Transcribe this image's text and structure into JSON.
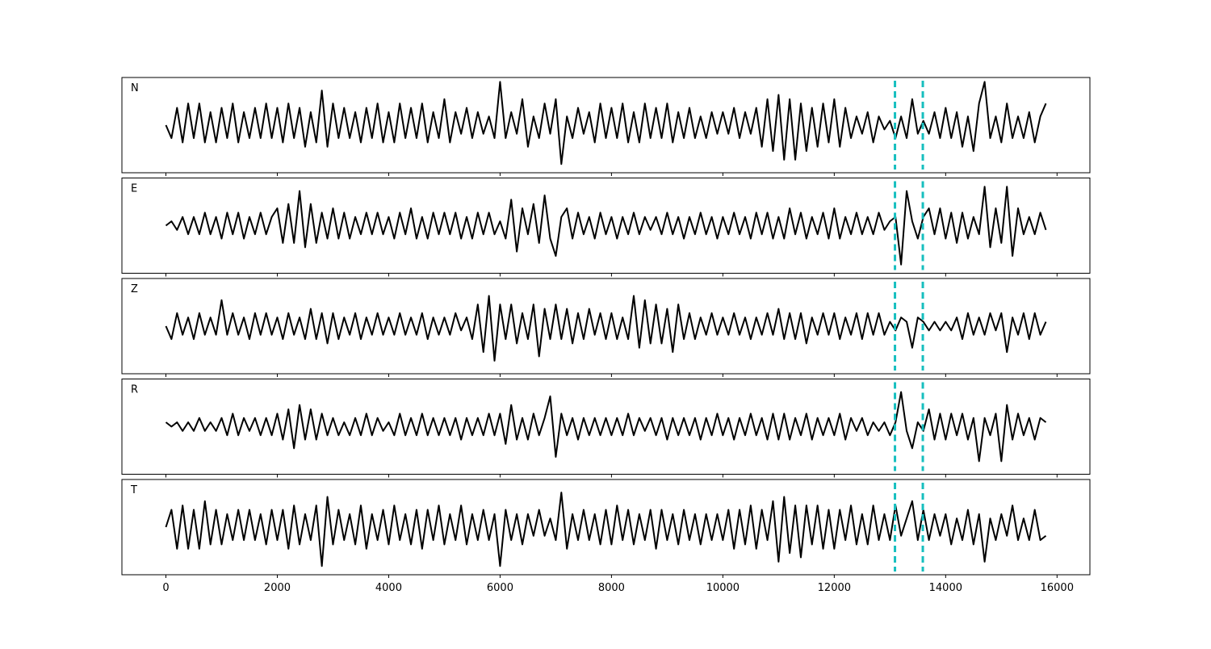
{
  "chart_data": {
    "type": "line",
    "x": [
      0,
      100,
      200,
      300,
      400,
      500,
      600,
      700,
      800,
      900,
      1000,
      1100,
      1200,
      1300,
      1400,
      1500,
      1600,
      1700,
      1800,
      1900,
      2000,
      2100,
      2200,
      2300,
      2400,
      2500,
      2600,
      2700,
      2800,
      2900,
      3000,
      3100,
      3200,
      3300,
      3400,
      3500,
      3600,
      3700,
      3800,
      3900,
      4000,
      4100,
      4200,
      4300,
      4400,
      4500,
      4600,
      4700,
      4800,
      4900,
      5000,
      5100,
      5200,
      5300,
      5400,
      5500,
      5600,
      5700,
      5800,
      5900,
      6000,
      6100,
      6200,
      6300,
      6400,
      6500,
      6600,
      6700,
      6800,
      6900,
      7000,
      7100,
      7200,
      7300,
      7400,
      7500,
      7600,
      7700,
      7800,
      7900,
      8000,
      8100,
      8200,
      8300,
      8400,
      8500,
      8600,
      8700,
      8800,
      8900,
      9000,
      9100,
      9200,
      9300,
      9400,
      9500,
      9600,
      9700,
      9800,
      9900,
      10000,
      10100,
      10200,
      10300,
      10400,
      10500,
      10600,
      10700,
      10800,
      10900,
      11000,
      11100,
      11200,
      11300,
      11400,
      11500,
      11600,
      11700,
      11800,
      11900,
      12000,
      12100,
      12200,
      12300,
      12400,
      12500,
      12600,
      12700,
      12800,
      12900,
      13000,
      13100,
      13200,
      13300,
      13400,
      13500,
      13600,
      13700,
      13800,
      13900,
      14000,
      14100,
      14200,
      14300,
      14400,
      14500,
      14600,
      14700,
      14800,
      14900,
      15000,
      15100,
      15200,
      15300,
      15400,
      15500,
      15600,
      15700,
      15800
    ],
    "series": [
      {
        "name": "N",
        "color": "#000000",
        "values": [
          0,
          -0.3,
          0.4,
          -0.4,
          0.5,
          -0.3,
          0.5,
          -0.4,
          0.3,
          -0.4,
          0.4,
          -0.3,
          0.5,
          -0.4,
          0.3,
          -0.3,
          0.4,
          -0.3,
          0.5,
          -0.3,
          0.4,
          -0.4,
          0.5,
          -0.3,
          0.4,
          -0.5,
          0.3,
          -0.4,
          0.8,
          -0.5,
          0.5,
          -0.3,
          0.4,
          -0.3,
          0.3,
          -0.4,
          0.4,
          -0.3,
          0.5,
          -0.4,
          0.3,
          -0.4,
          0.5,
          -0.3,
          0.4,
          -0.3,
          0.5,
          -0.4,
          0.3,
          -0.3,
          0.6,
          -0.4,
          0.3,
          -0.2,
          0.4,
          -0.3,
          0.3,
          -0.2,
          0.2,
          -0.3,
          1.0,
          -0.3,
          0.3,
          -0.2,
          0.6,
          -0.5,
          0.2,
          -0.3,
          0.5,
          -0.2,
          0.6,
          -0.9,
          0.2,
          -0.3,
          0.4,
          -0.2,
          0.3,
          -0.4,
          0.5,
          -0.3,
          0.4,
          -0.3,
          0.5,
          -0.4,
          0.3,
          -0.4,
          0.5,
          -0.3,
          0.4,
          -0.3,
          0.5,
          -0.4,
          0.3,
          -0.3,
          0.4,
          -0.3,
          0.2,
          -0.3,
          0.3,
          -0.2,
          0.3,
          -0.2,
          0.4,
          -0.3,
          0.3,
          -0.2,
          0.4,
          -0.5,
          0.6,
          -0.6,
          0.7,
          -0.8,
          0.6,
          -0.8,
          0.5,
          -0.6,
          0.4,
          -0.5,
          0.5,
          -0.4,
          0.6,
          -0.5,
          0.4,
          -0.3,
          0.2,
          -0.2,
          0.3,
          -0.4,
          0.2,
          -0.1,
          0.1,
          -0.3,
          0.2,
          -0.3,
          0.6,
          -0.2,
          0.1,
          -0.2,
          0.3,
          -0.3,
          0.4,
          -0.3,
          0.3,
          -0.5,
          0.2,
          -0.6,
          0.5,
          1.0,
          -0.3,
          0.2,
          -0.4,
          0.5,
          -0.3,
          0.2,
          -0.3,
          0.3,
          -0.4,
          0.2,
          0.5
        ]
      },
      {
        "name": "E",
        "color": "#000000",
        "values": [
          0,
          0.1,
          -0.1,
          0.2,
          -0.2,
          0.2,
          -0.2,
          0.3,
          -0.2,
          0.2,
          -0.3,
          0.3,
          -0.2,
          0.3,
          -0.3,
          0.2,
          -0.2,
          0.3,
          -0.2,
          0.2,
          0.4,
          -0.4,
          0.5,
          -0.4,
          0.8,
          -0.5,
          0.5,
          -0.4,
          0.3,
          -0.3,
          0.4,
          -0.3,
          0.3,
          -0.3,
          0.2,
          -0.2,
          0.3,
          -0.2,
          0.3,
          -0.2,
          0.2,
          -0.3,
          0.3,
          -0.2,
          0.4,
          -0.3,
          0.2,
          -0.3,
          0.3,
          -0.2,
          0.3,
          -0.2,
          0.3,
          -0.3,
          0.2,
          -0.3,
          0.3,
          -0.2,
          0.3,
          -0.2,
          0.1,
          -0.3,
          0.6,
          -0.6,
          0.4,
          -0.2,
          0.5,
          -0.4,
          0.7,
          -0.3,
          -0.7,
          0.2,
          0.4,
          -0.3,
          0.3,
          -0.2,
          0.2,
          -0.3,
          0.3,
          -0.2,
          0.2,
          -0.3,
          0.2,
          -0.2,
          0.3,
          -0.2,
          0.2,
          -0.1,
          0.2,
          -0.2,
          0.3,
          -0.2,
          0.2,
          -0.3,
          0.2,
          -0.2,
          0.3,
          -0.2,
          0.2,
          -0.3,
          0.2,
          -0.2,
          0.3,
          -0.2,
          0.2,
          -0.3,
          0.3,
          -0.2,
          0.3,
          -0.3,
          0.2,
          -0.3,
          0.4,
          -0.2,
          0.3,
          -0.3,
          0.2,
          -0.2,
          0.3,
          -0.3,
          0.4,
          -0.3,
          0.2,
          -0.2,
          0.3,
          -0.2,
          0.2,
          -0.2,
          0.3,
          -0.1,
          0.1,
          0.2,
          -0.9,
          0.8,
          0.1,
          -0.3,
          0.2,
          0.4,
          -0.2,
          0.4,
          -0.3,
          0.3,
          -0.4,
          0.3,
          -0.3,
          0.2,
          -0.2,
          0.9,
          -0.5,
          0.4,
          -0.4,
          0.9,
          -0.7,
          0.4,
          -0.2,
          0.2,
          -0.2,
          0.3,
          -0.1
        ]
      },
      {
        "name": "Z",
        "color": "#000000",
        "values": [
          0,
          -0.3,
          0.3,
          -0.2,
          0.2,
          -0.3,
          0.3,
          -0.2,
          0.2,
          -0.2,
          0.6,
          -0.2,
          0.3,
          -0.2,
          0.2,
          -0.3,
          0.3,
          -0.2,
          0.3,
          -0.2,
          0.2,
          -0.3,
          0.3,
          -0.2,
          0.2,
          -0.3,
          0.4,
          -0.3,
          0.3,
          -0.4,
          0.3,
          -0.3,
          0.2,
          -0.2,
          0.3,
          -0.3,
          0.2,
          -0.2,
          0.3,
          -0.2,
          0.2,
          -0.2,
          0.3,
          -0.2,
          0.2,
          -0.2,
          0.3,
          -0.3,
          0.2,
          -0.2,
          0.2,
          -0.2,
          0.3,
          -0.1,
          0.2,
          -0.3,
          0.5,
          -0.6,
          0.7,
          -0.8,
          0.5,
          -0.3,
          0.5,
          -0.4,
          0.3,
          -0.3,
          0.5,
          -0.7,
          0.4,
          -0.3,
          0.5,
          -0.3,
          0.4,
          -0.4,
          0.3,
          -0.3,
          0.4,
          -0.2,
          0.3,
          -0.3,
          0.3,
          -0.3,
          0.2,
          -0.3,
          0.7,
          -0.5,
          0.6,
          -0.4,
          0.5,
          -0.4,
          0.4,
          -0.6,
          0.5,
          -0.3,
          0.3,
          -0.3,
          0.2,
          -0.2,
          0.3,
          -0.2,
          0.2,
          -0.2,
          0.3,
          -0.2,
          0.2,
          -0.3,
          0.2,
          -0.2,
          0.3,
          -0.2,
          0.4,
          -0.3,
          0.3,
          -0.3,
          0.3,
          -0.4,
          0.2,
          -0.2,
          0.3,
          -0.2,
          0.3,
          -0.3,
          0.2,
          -0.2,
          0.3,
          -0.3,
          0.3,
          -0.2,
          0.3,
          -0.2,
          0.1,
          -0.1,
          0.2,
          0.1,
          -0.5,
          0.2,
          0.1,
          -0.1,
          0.1,
          -0.1,
          0.1,
          -0.1,
          0.2,
          -0.3,
          0.3,
          -0.2,
          0.2,
          -0.2,
          0.3,
          -0.1,
          0.3,
          -0.6,
          0.2,
          -0.2,
          0.3,
          -0.3,
          0.3,
          -0.2,
          0.1
        ]
      },
      {
        "name": "R",
        "color": "#000000",
        "values": [
          0.1,
          0,
          0.1,
          -0.1,
          0.1,
          -0.1,
          0.2,
          -0.1,
          0.1,
          -0.1,
          0.2,
          -0.2,
          0.3,
          -0.2,
          0.2,
          -0.1,
          0.2,
          -0.2,
          0.2,
          -0.2,
          0.3,
          -0.3,
          0.4,
          -0.5,
          0.5,
          -0.3,
          0.4,
          -0.3,
          0.3,
          -0.2,
          0.2,
          -0.2,
          0.1,
          -0.2,
          0.2,
          -0.2,
          0.3,
          -0.2,
          0.2,
          -0.1,
          0.1,
          -0.2,
          0.3,
          -0.2,
          0.2,
          -0.2,
          0.3,
          -0.2,
          0.2,
          -0.2,
          0.2,
          -0.2,
          0.2,
          -0.3,
          0.2,
          -0.2,
          0.2,
          -0.2,
          0.3,
          -0.2,
          0.3,
          -0.4,
          0.5,
          -0.3,
          0.2,
          -0.3,
          0.3,
          -0.2,
          0.2,
          0.7,
          -0.7,
          0.3,
          -0.2,
          0.2,
          -0.3,
          0.2,
          -0.2,
          0.2,
          -0.2,
          0.2,
          -0.2,
          0.2,
          -0.2,
          0.3,
          -0.2,
          0.2,
          -0.1,
          0.2,
          -0.2,
          0.2,
          -0.3,
          0.2,
          -0.2,
          0.2,
          -0.2,
          0.2,
          -0.3,
          0.2,
          -0.2,
          0.3,
          -0.2,
          0.2,
          -0.3,
          0.2,
          -0.2,
          0.3,
          -0.2,
          0.2,
          -0.3,
          0.3,
          -0.3,
          0.3,
          -0.3,
          0.2,
          -0.2,
          0.3,
          -0.3,
          0.2,
          -0.2,
          0.2,
          -0.2,
          0.3,
          -0.3,
          0.2,
          -0.1,
          0.2,
          -0.2,
          0.1,
          -0.1,
          0.1,
          -0.2,
          0.1,
          0.8,
          -0.1,
          -0.5,
          0.1,
          -0.1,
          0.4,
          -0.3,
          0.3,
          -0.3,
          0.3,
          -0.2,
          0.3,
          -0.3,
          0.2,
          -0.8,
          0.2,
          -0.2,
          0.3,
          -0.8,
          0.5,
          -0.3,
          0.3,
          -0.2,
          0.2,
          -0.3,
          0.2,
          0.1
        ]
      },
      {
        "name": "T",
        "color": "#000000",
        "values": [
          0,
          0.4,
          -0.5,
          0.5,
          -0.5,
          0.4,
          -0.5,
          0.6,
          -0.4,
          0.4,
          -0.4,
          0.3,
          -0.3,
          0.4,
          -0.3,
          0.4,
          -0.3,
          0.3,
          -0.4,
          0.4,
          -0.3,
          0.4,
          -0.5,
          0.5,
          -0.4,
          0.3,
          -0.3,
          0.5,
          -0.9,
          0.7,
          -0.4,
          0.4,
          -0.3,
          0.3,
          -0.4,
          0.5,
          -0.5,
          0.3,
          -0.3,
          0.4,
          -0.4,
          0.5,
          -0.3,
          0.3,
          -0.4,
          0.4,
          -0.5,
          0.4,
          -0.3,
          0.5,
          -0.4,
          0.3,
          -0.3,
          0.5,
          -0.4,
          0.3,
          -0.3,
          0.4,
          -0.3,
          0.3,
          -0.9,
          0.4,
          -0.3,
          0.3,
          -0.4,
          0.3,
          -0.2,
          0.4,
          -0.2,
          0.2,
          -0.3,
          0.8,
          -0.5,
          0.3,
          -0.3,
          0.4,
          -0.3,
          0.3,
          -0.4,
          0.4,
          -0.4,
          0.5,
          -0.3,
          0.4,
          -0.4,
          0.3,
          -0.3,
          0.4,
          -0.5,
          0.4,
          -0.3,
          0.3,
          -0.4,
          0.4,
          -0.3,
          0.3,
          -0.4,
          0.3,
          -0.3,
          0.3,
          -0.3,
          0.4,
          -0.5,
          0.4,
          -0.4,
          0.5,
          -0.5,
          0.4,
          -0.3,
          0.6,
          -0.8,
          0.7,
          -0.6,
          0.5,
          -0.7,
          0.5,
          -0.4,
          0.5,
          -0.5,
          0.4,
          -0.5,
          0.4,
          -0.3,
          0.5,
          -0.4,
          0.3,
          -0.4,
          0.5,
          -0.3,
          0.3,
          -0.3,
          0.5,
          -0.2,
          0.2,
          0.6,
          -0.3,
          0.4,
          -0.3,
          0.3,
          -0.2,
          0.3,
          -0.4,
          0.2,
          -0.3,
          0.4,
          -0.4,
          0.3,
          -0.8,
          0.2,
          -0.3,
          0.3,
          -0.2,
          0.5,
          -0.3,
          0.2,
          -0.3,
          0.4,
          -0.3,
          -0.2
        ]
      }
    ],
    "xlim": [
      -790,
      16590
    ],
    "xticks": [
      0,
      2000,
      4000,
      6000,
      8000,
      10000,
      12000,
      14000,
      16000
    ],
    "ylim": [
      -1.1,
      1.1
    ],
    "vlines": [
      13090,
      13590
    ],
    "vline_color": "#17bfbf"
  }
}
